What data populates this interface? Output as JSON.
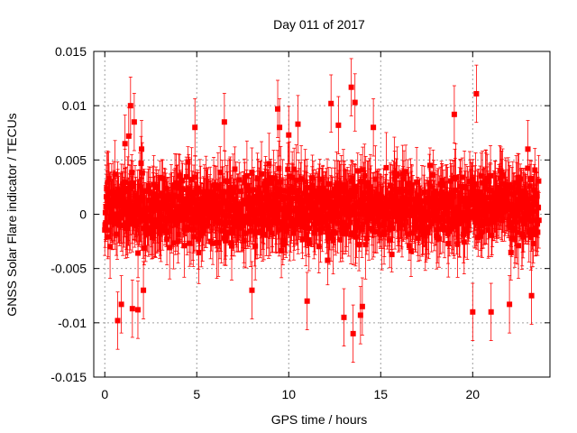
{
  "chart_data": {
    "type": "scatter",
    "title": "Day 011 of 2017",
    "xlabel": "GPS time / hours",
    "ylabel": "GNSS Solar Flare indicator / TECUs",
    "xlim": [
      -0.6,
      24.2
    ],
    "ylim": [
      -0.015,
      0.015
    ],
    "x_ticks": [
      0,
      5,
      10,
      15,
      20
    ],
    "y_ticks": [
      -0.015,
      -0.01,
      -0.005,
      0,
      0.005,
      0.01,
      0.015
    ],
    "y_tick_labels": [
      "-0.015",
      "-0.01",
      "-0.005",
      "0",
      "0.005",
      "0.01",
      "0.015"
    ],
    "grid": true,
    "legend": "none",
    "marker": "square",
    "series": [
      {
        "color": "#ff0000",
        "error_bars": true,
        "x_start": 0,
        "x_end": 23.6,
        "typical_error": 0.0022,
        "points": [
          {
            "x": 0.7,
            "y": -0.0098
          },
          {
            "x": 0.9,
            "y": -0.0083
          },
          {
            "x": 1.1,
            "y": 0.0065
          },
          {
            "x": 1.3,
            "y": 0.0072
          },
          {
            "x": 1.4,
            "y": 0.01
          },
          {
            "x": 1.5,
            "y": -0.0087
          },
          {
            "x": 1.6,
            "y": 0.0085
          },
          {
            "x": 1.8,
            "y": -0.0088
          },
          {
            "x": 2.0,
            "y": 0.006
          },
          {
            "x": 2.1,
            "y": -0.007
          },
          {
            "x": 4.9,
            "y": 0.008
          },
          {
            "x": 6.5,
            "y": 0.0085
          },
          {
            "x": 8.0,
            "y": -0.007
          },
          {
            "x": 9.4,
            "y": 0.0097
          },
          {
            "x": 9.5,
            "y": 0.008
          },
          {
            "x": 10.0,
            "y": 0.0073
          },
          {
            "x": 10.5,
            "y": 0.0083
          },
          {
            "x": 11.0,
            "y": -0.008
          },
          {
            "x": 12.3,
            "y": 0.0102
          },
          {
            "x": 12.7,
            "y": 0.0082
          },
          {
            "x": 13.0,
            "y": -0.0095
          },
          {
            "x": 13.4,
            "y": 0.0117
          },
          {
            "x": 13.5,
            "y": -0.011
          },
          {
            "x": 13.6,
            "y": 0.0103
          },
          {
            "x": 13.9,
            "y": -0.0093
          },
          {
            "x": 14.0,
            "y": -0.0085
          },
          {
            "x": 14.6,
            "y": 0.008
          },
          {
            "x": 19.0,
            "y": 0.0092
          },
          {
            "x": 20.0,
            "y": -0.009
          },
          {
            "x": 20.2,
            "y": 0.0111
          },
          {
            "x": 21.0,
            "y": -0.009
          },
          {
            "x": 22.0,
            "y": -0.0083
          },
          {
            "x": 23.0,
            "y": 0.006
          },
          {
            "x": 23.2,
            "y": -0.0075
          }
        ]
      }
    ]
  }
}
